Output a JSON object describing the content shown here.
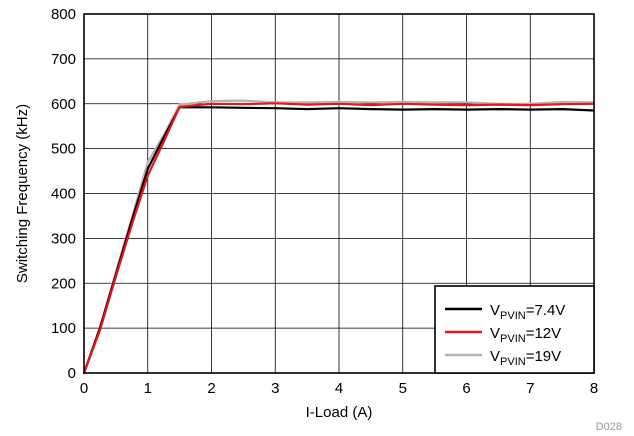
{
  "chart_data": {
    "type": "line",
    "xlabel": "I-Load (A)",
    "ylabel": "Switching Frequency (kHz)",
    "xlim": [
      0,
      8
    ],
    "ylim": [
      0,
      800
    ],
    "xticks": [
      "0",
      "1",
      "2",
      "3",
      "4",
      "5",
      "6",
      "7",
      "8"
    ],
    "yticks": [
      "0",
      "100",
      "200",
      "300",
      "400",
      "500",
      "600",
      "700",
      "800"
    ],
    "grid": true,
    "legend_position": "bottom-right",
    "series": [
      {
        "name": "VPVIN=7.4V",
        "legend_prefix": "V",
        "legend_sub": "PVIN",
        "legend_suffix": "=7.4V",
        "color": "#000000",
        "x": [
          0,
          0.25,
          0.5,
          0.75,
          1.0,
          1.25,
          1.5,
          2,
          2.5,
          3,
          3.5,
          4,
          4.5,
          5,
          5.5,
          6,
          6.5,
          7,
          7.5,
          8
        ],
        "y": [
          0,
          100,
          220,
          340,
          455,
          525,
          592,
          592,
          591,
          590,
          588,
          590,
          588,
          587,
          588,
          587,
          588,
          587,
          588,
          585
        ]
      },
      {
        "name": "VPVIN=12V",
        "legend_prefix": "V",
        "legend_sub": "PVIN",
        "legend_suffix": "=12V",
        "color": "#e8141c",
        "x": [
          0,
          0.25,
          0.5,
          0.75,
          1.0,
          1.25,
          1.5,
          2,
          2.5,
          3,
          3.5,
          4,
          4.5,
          5,
          5.5,
          6,
          6.5,
          7,
          7.5,
          8
        ],
        "y": [
          0,
          95,
          215,
          330,
          440,
          515,
          593,
          600,
          599,
          601,
          598,
          600,
          597,
          600,
          598,
          597,
          598,
          597,
          599,
          600
        ]
      },
      {
        "name": "VPVIN=19V",
        "legend_prefix": "V",
        "legend_sub": "PVIN",
        "legend_suffix": "=19V",
        "color": "#b4b4b4",
        "x": [
          0,
          0.25,
          0.5,
          0.75,
          1.0,
          1.25,
          1.5,
          2,
          2.5,
          3,
          3.5,
          4,
          4.5,
          5,
          5.5,
          6,
          6.5,
          7,
          7.5,
          8
        ],
        "y": [
          0,
          100,
          225,
          345,
          470,
          530,
          598,
          606,
          607,
          603,
          603,
          604,
          603,
          604,
          603,
          603,
          600,
          600,
          604,
          603
        ]
      }
    ],
    "footnote": "D028"
  }
}
